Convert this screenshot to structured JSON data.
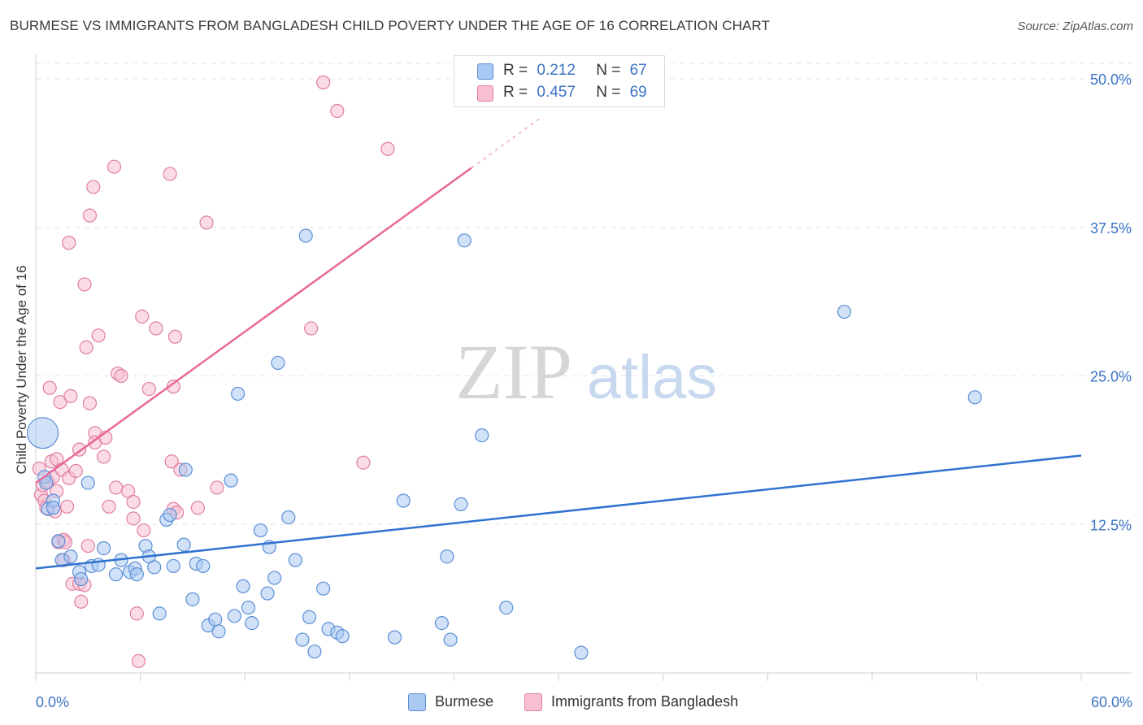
{
  "header": {
    "title": "BURMESE VS IMMIGRANTS FROM BANGLADESH CHILD POVERTY UNDER THE AGE OF 16 CORRELATION CHART",
    "source": "Source: ZipAtlas.com"
  },
  "legend_top": {
    "rows": [
      {
        "r_label": "R =",
        "r_value": "0.212",
        "n_label": "N =",
        "n_value": "67"
      },
      {
        "r_label": "R =",
        "r_value": "0.457",
        "n_label": "N =",
        "n_value": "69"
      }
    ]
  },
  "legend_bottom": {
    "items": [
      {
        "label": "Burmese"
      },
      {
        "label": "Immigrants from Bangladesh"
      }
    ]
  },
  "watermark": {
    "zip": "ZIP",
    "atlas": "atlas"
  },
  "colors": {
    "blue_fill": "#a9c8f2",
    "blue_stroke": "#5b8fd6",
    "blue_line": "#2f72d0",
    "pink_fill": "#f7bfd1",
    "pink_stroke": "#e07ea0",
    "pink_line": "#e8679a",
    "tick_label": "#3b73c6",
    "grid": "#e4e4e4"
  },
  "chart_data": {
    "type": "scatter",
    "title": "BURMESE VS IMMIGRANTS FROM BANGLADESH CHILD POVERTY UNDER THE AGE OF 16 CORRELATION CHART",
    "xlabel": "",
    "ylabel": "Child Poverty Under the Age of 16",
    "xlim": [
      0,
      60
    ],
    "ylim": [
      0,
      50
    ],
    "x_tick_labels": [
      "0.0%",
      "60.0%"
    ],
    "y_ticks": [
      12.5,
      25.0,
      37.5,
      50.0
    ],
    "y_tick_labels": [
      "12.5%",
      "25.0%",
      "37.5%",
      "50.0%"
    ],
    "grid": true,
    "legend_position": "top-center",
    "series": [
      {
        "name": "Burmese",
        "r": 0.212,
        "n": 67,
        "trend": {
          "x": [
            0,
            60
          ],
          "y": [
            8.8,
            18.3
          ]
        },
        "points": [
          [
            0.4,
            20.2
          ],
          [
            0.5,
            16.5
          ],
          [
            0.6,
            16.0
          ],
          [
            0.7,
            13.8
          ],
          [
            1.0,
            14.5
          ],
          [
            1.0,
            13.9
          ],
          [
            1.3,
            11.1
          ],
          [
            1.5,
            9.5
          ],
          [
            2.0,
            9.8
          ],
          [
            2.5,
            8.5
          ],
          [
            2.6,
            7.9
          ],
          [
            3.0,
            16.0
          ],
          [
            3.2,
            9.0
          ],
          [
            3.6,
            9.1
          ],
          [
            3.9,
            10.5
          ],
          [
            4.6,
            8.3
          ],
          [
            4.9,
            9.5
          ],
          [
            5.4,
            8.5
          ],
          [
            5.7,
            8.8
          ],
          [
            5.8,
            8.3
          ],
          [
            6.3,
            10.7
          ],
          [
            6.5,
            9.8
          ],
          [
            6.8,
            8.9
          ],
          [
            7.1,
            5.0
          ],
          [
            7.5,
            12.9
          ],
          [
            7.7,
            13.3
          ],
          [
            7.9,
            9.0
          ],
          [
            8.5,
            10.8
          ],
          [
            8.6,
            17.1
          ],
          [
            9.0,
            6.2
          ],
          [
            9.2,
            9.2
          ],
          [
            9.6,
            9.0
          ],
          [
            9.9,
            4.0
          ],
          [
            10.3,
            4.5
          ],
          [
            10.5,
            3.5
          ],
          [
            11.2,
            16.2
          ],
          [
            11.4,
            4.8
          ],
          [
            11.6,
            23.5
          ],
          [
            11.9,
            7.3
          ],
          [
            12.2,
            5.5
          ],
          [
            12.4,
            4.2
          ],
          [
            12.9,
            12.0
          ],
          [
            13.3,
            6.7
          ],
          [
            13.4,
            10.6
          ],
          [
            13.7,
            8.0
          ],
          [
            13.9,
            26.1
          ],
          [
            14.5,
            13.1
          ],
          [
            14.9,
            9.5
          ],
          [
            15.3,
            2.8
          ],
          [
            15.5,
            36.8
          ],
          [
            15.7,
            4.7
          ],
          [
            16.0,
            1.8
          ],
          [
            16.5,
            7.1
          ],
          [
            16.8,
            3.7
          ],
          [
            17.3,
            3.4
          ],
          [
            17.6,
            3.1
          ],
          [
            20.6,
            3.0
          ],
          [
            21.1,
            14.5
          ],
          [
            23.3,
            4.2
          ],
          [
            23.6,
            9.8
          ],
          [
            23.8,
            2.8
          ],
          [
            24.4,
            14.2
          ],
          [
            24.6,
            36.4
          ],
          [
            25.6,
            20.0
          ],
          [
            27.0,
            5.5
          ],
          [
            31.3,
            1.7
          ],
          [
            46.4,
            30.4
          ],
          [
            53.9,
            23.2
          ]
        ]
      },
      {
        "name": "Immigrants from Bangladesh",
        "r": 0.457,
        "n": 69,
        "trend": {
          "x": [
            0,
            25
          ],
          "y": [
            16.0,
            42.5
          ]
        },
        "points": [
          [
            0.2,
            17.2
          ],
          [
            0.3,
            15.0
          ],
          [
            0.4,
            15.8
          ],
          [
            0.5,
            14.5
          ],
          [
            0.6,
            13.9
          ],
          [
            0.7,
            16.1
          ],
          [
            0.8,
            24.0
          ],
          [
            0.9,
            17.8
          ],
          [
            1.0,
            16.5
          ],
          [
            1.1,
            13.6
          ],
          [
            1.2,
            15.3
          ],
          [
            1.2,
            18.0
          ],
          [
            1.3,
            11.0
          ],
          [
            1.4,
            22.8
          ],
          [
            1.5,
            17.1
          ],
          [
            1.6,
            9.5
          ],
          [
            1.6,
            11.2
          ],
          [
            1.7,
            11.0
          ],
          [
            1.8,
            14.0
          ],
          [
            1.9,
            36.2
          ],
          [
            1.9,
            16.4
          ],
          [
            2.0,
            23.3
          ],
          [
            2.1,
            7.5
          ],
          [
            2.3,
            17.0
          ],
          [
            2.5,
            7.5
          ],
          [
            2.5,
            18.8
          ],
          [
            2.6,
            6.0
          ],
          [
            2.8,
            32.7
          ],
          [
            2.8,
            7.4
          ],
          [
            2.9,
            27.4
          ],
          [
            3.0,
            10.7
          ],
          [
            3.1,
            38.5
          ],
          [
            3.1,
            22.7
          ],
          [
            3.3,
            40.9
          ],
          [
            3.4,
            20.2
          ],
          [
            3.4,
            19.4
          ],
          [
            3.6,
            28.4
          ],
          [
            3.9,
            18.2
          ],
          [
            4.0,
            19.8
          ],
          [
            4.2,
            14.0
          ],
          [
            4.5,
            42.6
          ],
          [
            4.6,
            15.6
          ],
          [
            4.7,
            25.2
          ],
          [
            4.9,
            25.0
          ],
          [
            5.3,
            15.3
          ],
          [
            5.6,
            14.4
          ],
          [
            5.6,
            13.0
          ],
          [
            5.8,
            5.0
          ],
          [
            6.1,
            30.0
          ],
          [
            6.2,
            12.0
          ],
          [
            6.5,
            23.9
          ],
          [
            6.9,
            29.0
          ],
          [
            7.7,
            42.0
          ],
          [
            7.8,
            17.8
          ],
          [
            7.9,
            24.1
          ],
          [
            7.9,
            13.8
          ],
          [
            8.0,
            28.3
          ],
          [
            8.1,
            13.5
          ],
          [
            8.3,
            17.1
          ],
          [
            9.3,
            13.9
          ],
          [
            9.8,
            37.9
          ],
          [
            10.4,
            15.6
          ],
          [
            15.8,
            29.0
          ],
          [
            16.5,
            49.7
          ],
          [
            17.3,
            47.3
          ],
          [
            18.8,
            17.7
          ],
          [
            20.2,
            44.1
          ],
          [
            5.9,
            1.0
          ]
        ]
      }
    ]
  }
}
